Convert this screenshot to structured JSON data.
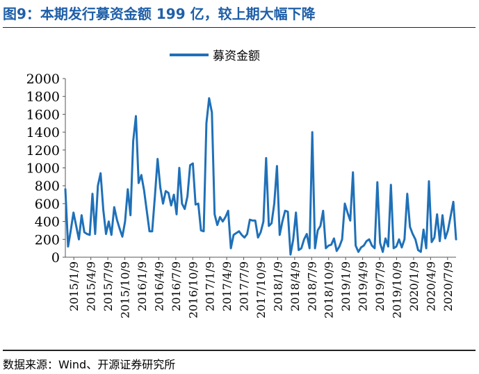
{
  "header": {
    "title": "图9：本期发行募资金额 199 亿，较上期大幅下降"
  },
  "footer": {
    "source": "数据来源：Wind、开源证券研究所"
  },
  "chart_data": {
    "type": "line",
    "title": "",
    "xlabel": "",
    "ylabel": "",
    "ylim": [
      0,
      2000
    ],
    "yticks": [
      0,
      200,
      400,
      600,
      800,
      1000,
      1200,
      1400,
      1600,
      1800,
      2000
    ],
    "xtick_labels": [
      "2015/1/9",
      "2015/4/9",
      "2015/7/9",
      "2015/10/9",
      "2016/1/9",
      "2016/4/9",
      "2016/7/9",
      "2016/10/9",
      "2017/1/9",
      "2017/4/9",
      "2017/7/9",
      "2017/10/9",
      "2018/1/9",
      "2018/4/9",
      "2018/7/9",
      "2018/10/9",
      "2019/1/9",
      "2019/4/9",
      "2019/7/9",
      "2019/10/9",
      "2020/1/9",
      "2020/4/9",
      "2020/7/9"
    ],
    "grid": false,
    "legend_position": "top-center",
    "line_color": "#1f70b8",
    "series": [
      {
        "name": "募资金额",
        "values": [
          760,
          120,
          300,
          500,
          350,
          200,
          470,
          280,
          260,
          250,
          710,
          260,
          800,
          940,
          530,
          260,
          400,
          250,
          560,
          420,
          320,
          230,
          400,
          760,
          470,
          1300,
          1580,
          830,
          920,
          750,
          520,
          290,
          290,
          680,
          1100,
          780,
          600,
          740,
          720,
          580,
          700,
          480,
          1000,
          600,
          540,
          680,
          1030,
          1050,
          590,
          600,
          300,
          290,
          1500,
          1780,
          1620,
          480,
          360,
          450,
          400,
          450,
          520,
          100,
          250,
          270,
          290,
          250,
          220,
          260,
          420,
          410,
          410,
          220,
          280,
          400,
          1110,
          350,
          380,
          600,
          1020,
          250,
          400,
          520,
          510,
          30,
          200,
          500,
          80,
          100,
          200,
          260,
          100,
          1400,
          100,
          300,
          350,
          520,
          100,
          130,
          140,
          210,
          70,
          120,
          200,
          600,
          500,
          410,
          950,
          130,
          60,
          110,
          130,
          180,
          200,
          130,
          100,
          840,
          160,
          60,
          210,
          120,
          810,
          100,
          120,
          200,
          110,
          200,
          710,
          340,
          260,
          200,
          80,
          60,
          310,
          100,
          850,
          170,
          220,
          480,
          180,
          470,
          210,
          300,
          460,
          620,
          200
        ]
      }
    ]
  }
}
